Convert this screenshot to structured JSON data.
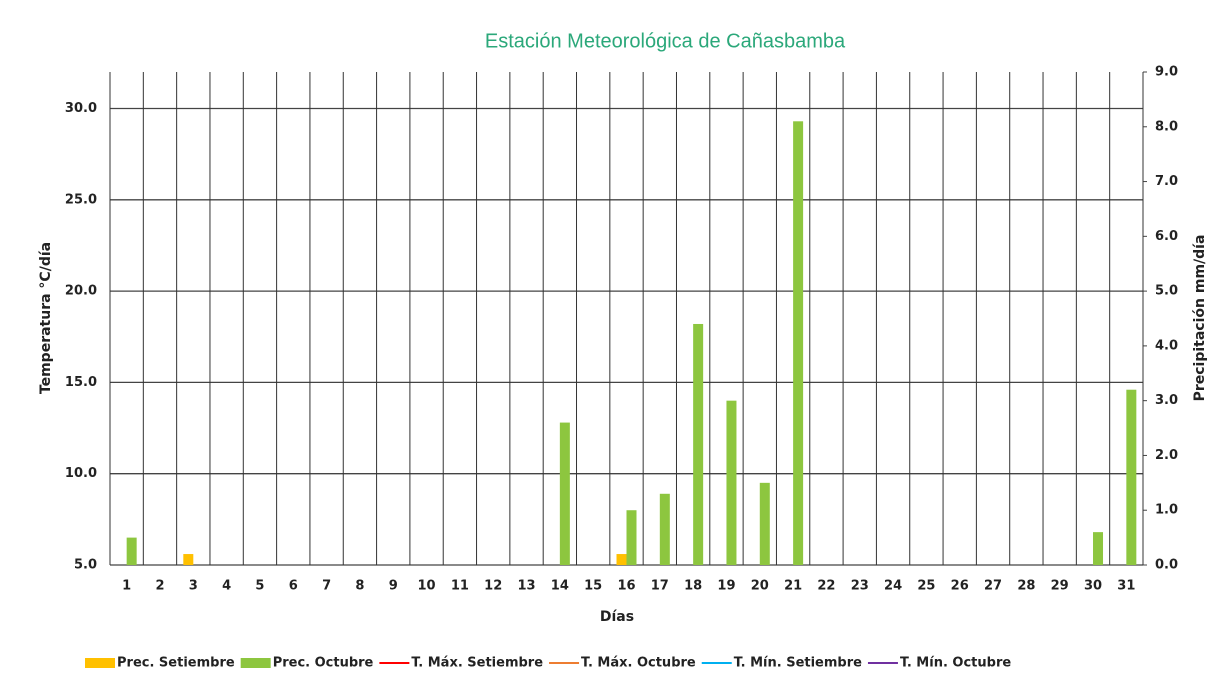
{
  "chart_data": {
    "type": "bar",
    "title": "Estación Meteorológica de Cañasbamba",
    "x_label": "Días",
    "y_label": "Temperatura °C/día",
    "y2_label": "Precipitación mm/día",
    "categories": [
      "1",
      "2",
      "3",
      "4",
      "5",
      "6",
      "7",
      "8",
      "9",
      "10",
      "11",
      "12",
      "13",
      "14",
      "15",
      "16",
      "17",
      "18",
      "19",
      "20",
      "21",
      "22",
      "23",
      "24",
      "25",
      "26",
      "27",
      "28",
      "29",
      "30",
      "31"
    ],
    "ylim": [
      5,
      32
    ],
    "yticks": [
      {
        "value": 5,
        "label": "5.0"
      },
      {
        "value": 10,
        "label": "10.0"
      },
      {
        "value": 15,
        "label": "15.0"
      },
      {
        "value": 20,
        "label": "20.0"
      },
      {
        "value": 25,
        "label": "25.0"
      },
      {
        "value": 30,
        "label": "30.0"
      }
    ],
    "y2lim": [
      0,
      9
    ],
    "y2ticks": [
      {
        "value": 0,
        "label": "0.0"
      },
      {
        "value": 1,
        "label": "1.0"
      },
      {
        "value": 2,
        "label": "2.0"
      },
      {
        "value": 3,
        "label": "3.0"
      },
      {
        "value": 4,
        "label": "4.0"
      },
      {
        "value": 5,
        "label": "5.0"
      },
      {
        "value": 6,
        "label": "6.0"
      },
      {
        "value": 7,
        "label": "7.0"
      },
      {
        "value": 8,
        "label": "8.0"
      },
      {
        "value": 9,
        "label": "9.0"
      }
    ],
    "grid": true,
    "legend": "bottom",
    "series": [
      {
        "name": "Prec. Setiembre",
        "type": "bar",
        "axis": "y2",
        "color": "#ffc000",
        "values": [
          null,
          null,
          0.2,
          null,
          null,
          null,
          null,
          null,
          null,
          null,
          null,
          null,
          null,
          null,
          null,
          0.2,
          null,
          null,
          null,
          null,
          null,
          null,
          null,
          null,
          null,
          null,
          null,
          null,
          null,
          null,
          null
        ]
      },
      {
        "name": "Prec. Octubre",
        "type": "bar",
        "axis": "y2",
        "color": "#8dc63f",
        "values": [
          0.5,
          null,
          null,
          null,
          null,
          null,
          null,
          null,
          null,
          null,
          null,
          null,
          null,
          2.6,
          null,
          1.0,
          1.3,
          4.4,
          3.0,
          1.5,
          8.1,
          null,
          null,
          null,
          null,
          null,
          null,
          null,
          null,
          0.6,
          3.2
        ]
      },
      {
        "name": "T. Máx. Setiembre",
        "type": "line",
        "color": "#ff0000",
        "values": [
          null,
          null,
          null,
          null,
          null,
          null,
          null,
          null,
          null,
          null,
          null,
          null,
          null,
          null,
          null,
          null,
          null,
          null,
          null,
          null,
          null,
          null,
          null,
          null,
          null,
          null,
          null,
          null,
          null,
          null,
          null
        ]
      },
      {
        "name": "T. Máx. Octubre",
        "type": "line",
        "color": "#ed7d31",
        "values": [
          null,
          null,
          null,
          null,
          null,
          null,
          null,
          null,
          null,
          null,
          null,
          null,
          null,
          null,
          null,
          null,
          null,
          null,
          null,
          null,
          null,
          null,
          null,
          null,
          null,
          null,
          null,
          null,
          null,
          null,
          null
        ]
      },
      {
        "name": "T. Mín. Setiembre",
        "type": "line",
        "color": "#00b0f0",
        "values": [
          null,
          null,
          null,
          null,
          null,
          null,
          null,
          null,
          null,
          null,
          null,
          null,
          null,
          null,
          null,
          null,
          null,
          null,
          null,
          null,
          null,
          null,
          null,
          null,
          null,
          null,
          null,
          null,
          null,
          null,
          null
        ]
      },
      {
        "name": "T. Mín. Octubre",
        "type": "line",
        "color": "#7030a0",
        "values": [
          null,
          null,
          null,
          null,
          null,
          null,
          null,
          null,
          null,
          null,
          null,
          null,
          null,
          null,
          null,
          null,
          null,
          null,
          null,
          null,
          null,
          null,
          null,
          null,
          null,
          null,
          null,
          null,
          null,
          null,
          null
        ]
      }
    ]
  }
}
